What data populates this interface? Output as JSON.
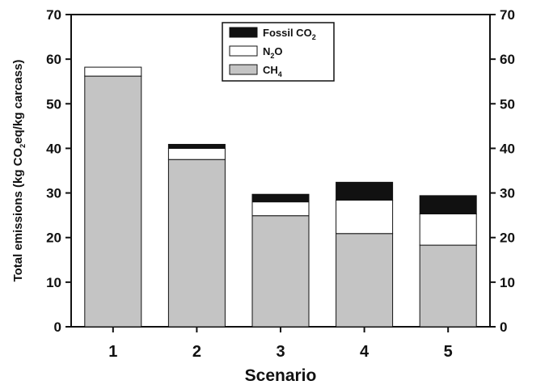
{
  "chart_data": {
    "type": "bar",
    "stacked": true,
    "categories": [
      "1",
      "2",
      "3",
      "4",
      "5"
    ],
    "series": [
      {
        "name": "CH4",
        "name_parts": [
          "CH",
          "4"
        ],
        "color": "#c4c4c4",
        "values": [
          56.2,
          37.5,
          24.9,
          20.9,
          18.3
        ]
      },
      {
        "name": "N2O",
        "name_parts": [
          "N",
          "2",
          "O"
        ],
        "color": "#ffffff",
        "values": [
          2.0,
          2.5,
          3.1,
          7.5,
          7.0
        ]
      },
      {
        "name": "Fossil CO2",
        "name_parts": [
          "Fossil CO",
          "2"
        ],
        "color": "#111111",
        "values": [
          0.0,
          0.9,
          1.7,
          4.0,
          4.1
        ]
      }
    ],
    "legend_order": [
      "Fossil CO2",
      "N2O",
      "CH4"
    ],
    "legend_position": "top-center",
    "xlabel": "Scenario",
    "ylabel": "Total emissions (kg CO2eq/kg carcass)",
    "ylabel_parts": [
      "Total emissions (kg CO",
      "2",
      "eq/kg carcass)"
    ],
    "ylim": [
      0,
      70
    ],
    "yticks": [
      0,
      10,
      20,
      30,
      40,
      50,
      60,
      70
    ],
    "secondary_y_axis": true,
    "grid": false
  }
}
